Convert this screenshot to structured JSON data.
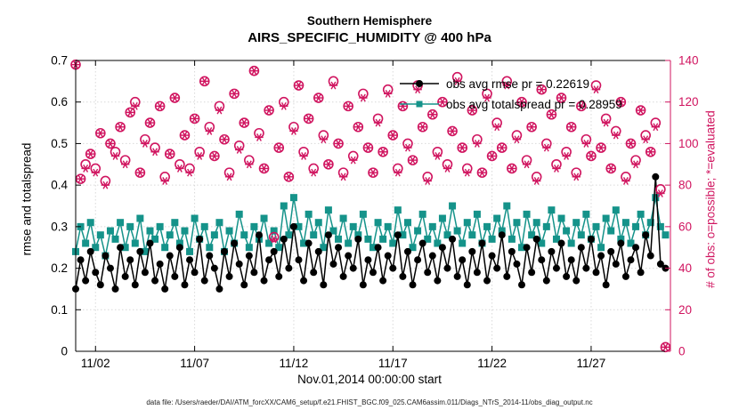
{
  "footer": "data file: /Users/raeder/DAI/ATM_forcXX/CAM6_setup/f.e21.FHIST_BGC.f09_025.CAM6assim.011/Diags_NTrS_2014-11/obs_diag_output.nc",
  "legend": [
    {
      "label": "obs avg rmse pr = 0.22619",
      "color": "#000000",
      "marker": "filled-circle"
    },
    {
      "label": "obs avg totalspread pr = 0.28959",
      "color": "#15938a",
      "marker": "filled-square"
    }
  ],
  "chart_data": {
    "type": "line",
    "title": "Southern Hemisphere",
    "subtitle": "AIRS_SPECIFIC_HUMIDITY @ 400 hPa",
    "xlabel": "Nov.01,2014 00:00:00 start",
    "ylabel_left": "rmse and totalspread",
    "ylabel_right": "# of obs: o=possible; *=evaluated",
    "xlim": [
      1,
      31
    ],
    "ylim_left": [
      0,
      0.7
    ],
    "ylim_right": [
      0,
      140
    ],
    "grid": true,
    "legend_position": "top-right-inside",
    "xticks": [
      {
        "value": 2,
        "label": "11/02"
      },
      {
        "value": 7,
        "label": "11/07"
      },
      {
        "value": 12,
        "label": "11/12"
      },
      {
        "value": 17,
        "label": "11/17"
      },
      {
        "value": 22,
        "label": "11/22"
      },
      {
        "value": 27,
        "label": "11/27"
      }
    ],
    "yticks_left": [
      0,
      0.1,
      0.2,
      0.3,
      0.4,
      0.5,
      0.6,
      0.7
    ],
    "yticks_right": [
      0,
      20,
      40,
      60,
      80,
      100,
      120,
      140
    ],
    "colors": {
      "left_axis": "#000000",
      "right_axis": "#d0145f",
      "rmse": "#000000",
      "totalspread": "#15938a",
      "obs": "#d0145f"
    },
    "x": [
      1,
      1.25,
      1.5,
      1.75,
      2,
      2.25,
      2.5,
      2.75,
      3,
      3.25,
      3.5,
      3.75,
      4,
      4.25,
      4.5,
      4.75,
      5,
      5.25,
      5.5,
      5.75,
      6,
      6.25,
      6.5,
      6.75,
      7,
      7.25,
      7.5,
      7.75,
      8,
      8.25,
      8.5,
      8.75,
      9,
      9.25,
      9.5,
      9.75,
      10,
      10.25,
      10.5,
      10.75,
      11,
      11.25,
      11.5,
      11.75,
      12,
      12.25,
      12.5,
      12.75,
      13,
      13.25,
      13.5,
      13.75,
      14,
      14.25,
      14.5,
      14.75,
      15,
      15.25,
      15.5,
      15.75,
      16,
      16.25,
      16.5,
      16.75,
      17,
      17.25,
      17.5,
      17.75,
      18,
      18.25,
      18.5,
      18.75,
      19,
      19.25,
      19.5,
      19.75,
      20,
      20.25,
      20.5,
      20.75,
      21,
      21.25,
      21.5,
      21.75,
      22,
      22.25,
      22.5,
      22.75,
      23,
      23.25,
      23.5,
      23.75,
      24,
      24.25,
      24.5,
      24.75,
      25,
      25.25,
      25.5,
      25.75,
      26,
      26.25,
      26.5,
      26.75,
      27,
      27.25,
      27.5,
      27.75,
      28,
      28.25,
      28.5,
      28.75,
      29,
      29.25,
      29.5,
      29.75,
      30,
      30.25,
      30.5,
      30.75
    ],
    "series": [
      {
        "name": "totalspread",
        "axis": "left",
        "marker": "filled-square",
        "line": true,
        "color": "#15938a",
        "values": [
          0.24,
          0.3,
          0.26,
          0.31,
          0.25,
          0.28,
          0.23,
          0.29,
          0.27,
          0.31,
          0.25,
          0.3,
          0.26,
          0.32,
          0.24,
          0.29,
          0.27,
          0.3,
          0.25,
          0.28,
          0.31,
          0.26,
          0.29,
          0.24,
          0.32,
          0.27,
          0.3,
          0.25,
          0.28,
          0.31,
          0.24,
          0.29,
          0.26,
          0.33,
          0.28,
          0.25,
          0.3,
          0.27,
          0.32,
          0.26,
          0.29,
          0.25,
          0.35,
          0.28,
          0.37,
          0.3,
          0.26,
          0.33,
          0.28,
          0.31,
          0.25,
          0.34,
          0.29,
          0.27,
          0.32,
          0.26,
          0.3,
          0.28,
          0.33,
          0.27,
          0.25,
          0.31,
          0.27,
          0.3,
          0.26,
          0.34,
          0.28,
          0.31,
          0.25,
          0.29,
          0.33,
          0.27,
          0.3,
          0.26,
          0.32,
          0.28,
          0.35,
          0.29,
          0.26,
          0.31,
          0.28,
          0.33,
          0.26,
          0.3,
          0.27,
          0.32,
          0.29,
          0.35,
          0.27,
          0.31,
          0.25,
          0.33,
          0.28,
          0.31,
          0.26,
          0.3,
          0.34,
          0.27,
          0.32,
          0.29,
          0.26,
          0.31,
          0.28,
          0.33,
          0.27,
          0.3,
          0.25,
          0.32,
          0.29,
          0.34,
          0.27,
          0.31,
          0.26,
          0.3,
          0.33,
          0.28,
          0.31,
          0.37,
          0.3,
          0.28
        ]
      },
      {
        "name": "rmse",
        "axis": "left",
        "marker": "filled-circle",
        "line": true,
        "color": "#000000",
        "values": [
          0.15,
          0.22,
          0.17,
          0.24,
          0.19,
          0.16,
          0.23,
          0.2,
          0.15,
          0.25,
          0.18,
          0.22,
          0.16,
          0.24,
          0.19,
          0.26,
          0.17,
          0.21,
          0.15,
          0.23,
          0.18,
          0.25,
          0.16,
          0.22,
          0.19,
          0.27,
          0.17,
          0.23,
          0.2,
          0.15,
          0.24,
          0.18,
          0.26,
          0.21,
          0.16,
          0.23,
          0.19,
          0.28,
          0.17,
          0.22,
          0.24,
          0.18,
          0.27,
          0.2,
          0.3,
          0.22,
          0.17,
          0.26,
          0.19,
          0.24,
          0.16,
          0.28,
          0.21,
          0.25,
          0.18,
          0.23,
          0.2,
          0.27,
          0.16,
          0.22,
          0.19,
          0.25,
          0.17,
          0.23,
          0.2,
          0.28,
          0.18,
          0.24,
          0.16,
          0.22,
          0.26,
          0.19,
          0.23,
          0.17,
          0.25,
          0.2,
          0.27,
          0.18,
          0.22,
          0.16,
          0.24,
          0.19,
          0.26,
          0.17,
          0.23,
          0.2,
          0.28,
          0.18,
          0.24,
          0.21,
          0.16,
          0.25,
          0.19,
          0.27,
          0.22,
          0.17,
          0.24,
          0.2,
          0.26,
          0.18,
          0.22,
          0.17,
          0.25,
          0.2,
          0.27,
          0.19,
          0.23,
          0.16,
          0.24,
          0.21,
          0.26,
          0.18,
          0.22,
          0.25,
          0.19,
          0.28,
          0.23,
          0.42,
          0.21,
          0.2
        ]
      },
      {
        "name": "possible_obs",
        "axis": "right",
        "marker": "open-circle",
        "line": false,
        "color": "#d0145f",
        "values": [
          138,
          83,
          90,
          95,
          88,
          105,
          82,
          100,
          96,
          108,
          92,
          115,
          120,
          86,
          102,
          110,
          98,
          118,
          84,
          95,
          122,
          90,
          104,
          88,
          112,
          96,
          130,
          108,
          94,
          118,
          102,
          86,
          124,
          99,
          110,
          92,
          135,
          105,
          88,
          116,
          55,
          98,
          120,
          84,
          108,
          128,
          96,
          112,
          88,
          122,
          104,
          90,
          130,
          100,
          86,
          118,
          94,
          108,
          124,
          98,
          86,
          112,
          96,
          126,
          104,
          88,
          118,
          100,
          92,
          128,
          108,
          84,
          114,
          96,
          120,
          90,
          106,
          132,
          98,
          88,
          116,
          102,
          86,
          124,
          94,
          110,
          98,
          130,
          88,
          104,
          120,
          92,
          108,
          84,
          126,
          100,
          114,
          90,
          122,
          96,
          108,
          86,
          118,
          102,
          94,
          128,
          98,
          112,
          88,
          106,
          120,
          84,
          100,
          92,
          116,
          104,
          96,
          110,
          78,
          2
        ]
      },
      {
        "name": "evaluated_obs",
        "axis": "right",
        "marker": "asterisk",
        "line": false,
        "color": "#d0145f",
        "values": [
          138,
          83,
          88,
          95,
          86,
          105,
          80,
          100,
          94,
          108,
          90,
          115,
          118,
          86,
          100,
          110,
          96,
          118,
          82,
          95,
          122,
          88,
          104,
          86,
          112,
          94,
          130,
          106,
          94,
          116,
          102,
          84,
          124,
          97,
          110,
          90,
          135,
          103,
          88,
          116,
          54,
          98,
          118,
          84,
          106,
          128,
          94,
          112,
          86,
          122,
          102,
          90,
          128,
          100,
          84,
          118,
          92,
          108,
          122,
          98,
          86,
          110,
          96,
          124,
          104,
          86,
          118,
          98,
          92,
          126,
          108,
          82,
          114,
          94,
          120,
          88,
          106,
          130,
          98,
          86,
          116,
          100,
          86,
          122,
          94,
          108,
          98,
          128,
          88,
          102,
          120,
          90,
          108,
          82,
          126,
          98,
          114,
          88,
          122,
          94,
          108,
          84,
          118,
          100,
          94,
          126,
          98,
          110,
          88,
          104,
          120,
          82,
          100,
          90,
          116,
          102,
          96,
          108,
          76,
          2
        ]
      }
    ]
  }
}
